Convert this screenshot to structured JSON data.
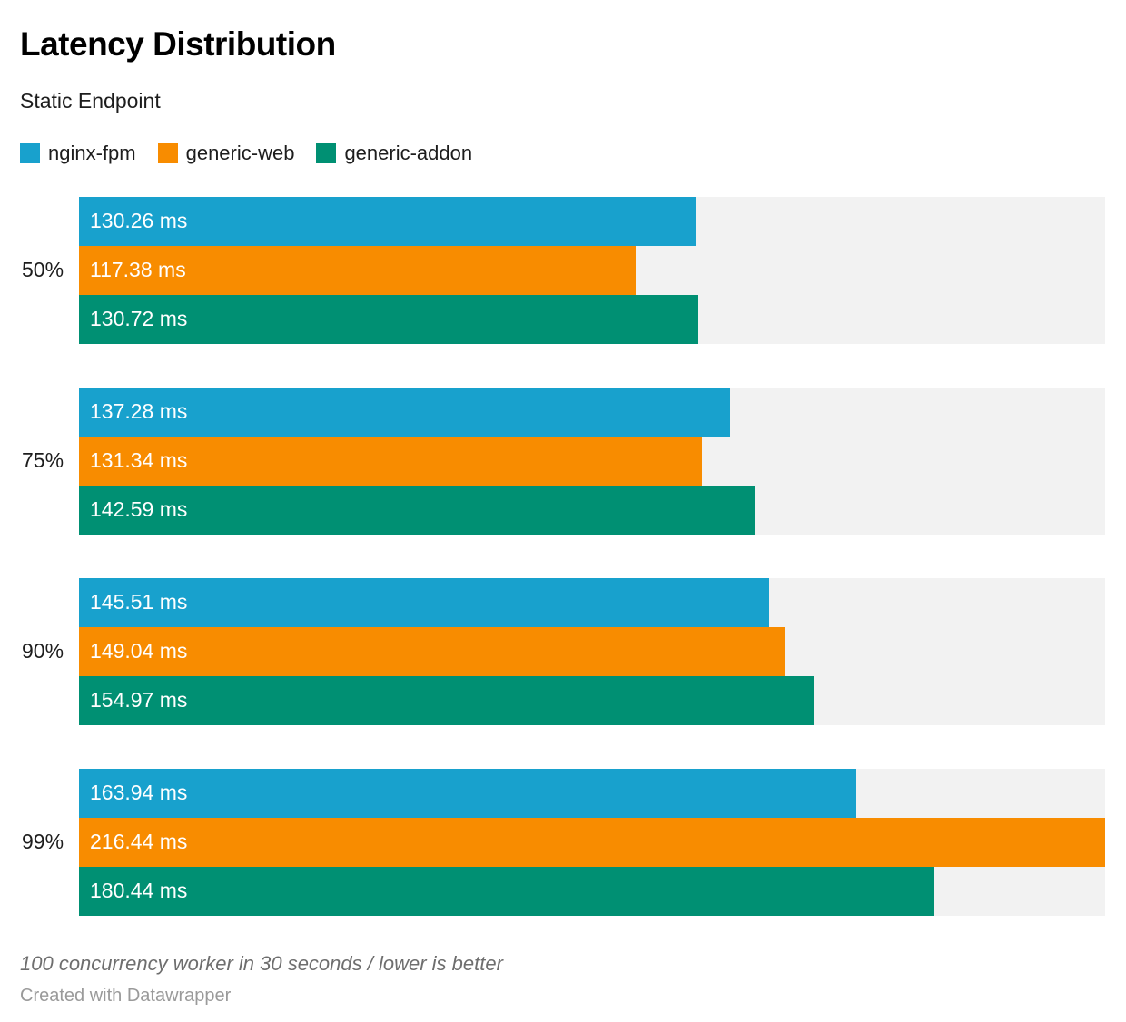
{
  "header": {
    "title": "Latency Distribution",
    "subtitle": "Static Endpoint"
  },
  "legend": {
    "items": [
      {
        "label": "nginx-fpm",
        "color": "#18a1cd"
      },
      {
        "label": "generic-web",
        "color": "#f88c00"
      },
      {
        "label": "generic-addon",
        "color": "#009073"
      }
    ]
  },
  "chart_data": {
    "type": "bar",
    "orientation": "horizontal",
    "title": "Latency Distribution",
    "subtitle": "Static Endpoint",
    "categories": [
      "50%",
      "75%",
      "90%",
      "99%"
    ],
    "series": [
      {
        "name": "nginx-fpm",
        "color": "#18a1cd",
        "values": [
          130.26,
          137.28,
          145.51,
          163.94
        ]
      },
      {
        "name": "generic-web",
        "color": "#f88c00",
        "values": [
          117.38,
          131.34,
          149.04,
          216.44
        ]
      },
      {
        "name": "generic-addon",
        "color": "#009073",
        "values": [
          130.72,
          142.59,
          154.97,
          180.44
        ]
      }
    ],
    "unit": "ms",
    "value_label_suffix": " ms",
    "xlim": [
      0,
      216.44
    ],
    "track_color": "#f2f2f2",
    "grid": false,
    "legend_position": "top",
    "value_labels": "inside-start"
  },
  "footer": {
    "note": "100 concurrency worker in 30 seconds / lower is better",
    "attribution": "Created with Datawrapper"
  }
}
